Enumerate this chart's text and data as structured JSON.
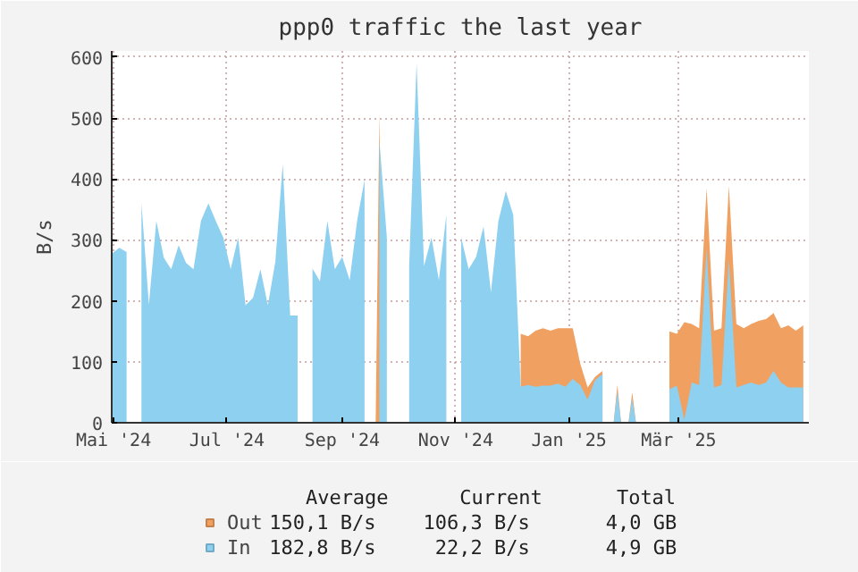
{
  "chart_data": {
    "type": "area",
    "title": "ppp0 traffic the last year",
    "ylabel": "B/s",
    "x": [
      "2024-04-30",
      "2024-05-04",
      "2024-05-08",
      "2024-05-12",
      "2024-05-16",
      "2024-05-20",
      "2024-05-24",
      "2024-05-28",
      "2024-06-01",
      "2024-06-05",
      "2024-06-09",
      "2024-06-13",
      "2024-06-17",
      "2024-06-21",
      "2024-06-25",
      "2024-06-29",
      "2024-07-03",
      "2024-07-07",
      "2024-07-11",
      "2024-07-15",
      "2024-07-19",
      "2024-07-23",
      "2024-07-27",
      "2024-07-31",
      "2024-08-04",
      "2024-08-08",
      "2024-08-12",
      "2024-08-16",
      "2024-08-20",
      "2024-08-24",
      "2024-08-28",
      "2024-09-01",
      "2024-09-05",
      "2024-09-09",
      "2024-09-13",
      "2024-09-17",
      "2024-09-21",
      "2024-09-25",
      "2024-09-29",
      "2024-10-03",
      "2024-10-07",
      "2024-10-11",
      "2024-10-15",
      "2024-10-19",
      "2024-10-23",
      "2024-10-27",
      "2024-10-31",
      "2024-11-04",
      "2024-11-08",
      "2024-11-12",
      "2024-11-16",
      "2024-11-20",
      "2024-11-24",
      "2024-11-28",
      "2024-12-02",
      "2024-12-06",
      "2024-12-10",
      "2024-12-14",
      "2024-12-18",
      "2024-12-22",
      "2024-12-26",
      "2024-12-30",
      "2025-01-03",
      "2025-01-07",
      "2025-01-11",
      "2025-01-15",
      "2025-01-19",
      "2025-01-23",
      "2025-01-27",
      "2025-01-31",
      "2025-02-04",
      "2025-02-08",
      "2025-02-12",
      "2025-02-16",
      "2025-02-20",
      "2025-02-24",
      "2025-02-28",
      "2025-03-04",
      "2025-03-08",
      "2025-03-12",
      "2025-03-16",
      "2025-03-20",
      "2025-03-24",
      "2025-03-28",
      "2025-04-01",
      "2025-04-05",
      "2025-04-09",
      "2025-04-13",
      "2025-04-17",
      "2025-04-21",
      "2025-04-25",
      "2025-04-29",
      "2025-05-03",
      "2025-05-07"
    ],
    "series": [
      {
        "name": "Out",
        "color": "#f0a060",
        "values": [
          null,
          null,
          null,
          null,
          null,
          null,
          null,
          null,
          null,
          null,
          null,
          null,
          null,
          null,
          null,
          null,
          null,
          null,
          null,
          null,
          null,
          null,
          null,
          null,
          null,
          null,
          null,
          null,
          null,
          null,
          null,
          null,
          null,
          null,
          null,
          null,
          507,
          null,
          null,
          null,
          null,
          null,
          null,
          null,
          null,
          null,
          null,
          null,
          null,
          null,
          null,
          null,
          null,
          null,
          null,
          146,
          142,
          151,
          155,
          151,
          155,
          155,
          155,
          97,
          58,
          75,
          85,
          null,
          62,
          null,
          50,
          null,
          null,
          null,
          null,
          150,
          146,
          165,
          162,
          155,
          385,
          151,
          155,
          389,
          162,
          155,
          162,
          167,
          170,
          180,
          155,
          160,
          151,
          160
        ]
      },
      {
        "name": "In",
        "color": "#8ed0ef",
        "values": [
          277,
          287,
          280,
          null,
          360,
          194,
          331,
          271,
          252,
          291,
          262,
          252,
          331,
          360,
          331,
          304,
          252,
          304,
          193,
          205,
          252,
          193,
          264,
          425,
          176,
          176,
          null,
          253,
          232,
          331,
          252,
          272,
          234,
          331,
          399,
          null,
          463,
          304,
          null,
          null,
          257,
          590,
          257,
          304,
          234,
          341,
          null,
          304,
          252,
          272,
          322,
          214,
          331,
          380,
          341,
          59,
          62,
          59,
          61,
          61,
          64,
          59,
          72,
          62,
          38,
          70,
          80,
          null,
          52,
          null,
          40,
          null,
          null,
          null,
          null,
          55,
          61,
          5,
          66,
          62,
          287,
          58,
          62,
          268,
          58,
          62,
          66,
          62,
          66,
          85,
          66,
          58,
          58,
          58
        ]
      }
    ],
    "xlim": [
      "2024-04-30",
      "2025-05-10"
    ],
    "xticks": [
      {
        "value": "2024-05-01",
        "label": "Mai '24"
      },
      {
        "value": "2024-07-01",
        "label": "Jul '24"
      },
      {
        "value": "2024-09-01",
        "label": "Sep '24"
      },
      {
        "value": "2024-11-01",
        "label": "Nov '24"
      },
      {
        "value": "2025-01-01",
        "label": "Jan '25"
      },
      {
        "value": "2025-03-01",
        "label": "Mär '25"
      }
    ],
    "ylim": [
      0,
      610
    ],
    "yticks": [
      0,
      100,
      200,
      300,
      400,
      500,
      600
    ],
    "grid": true,
    "legend": "bottom",
    "annotations": [
      "Average",
      "Current",
      "Total",
      "150,1  B/s",
      "106,3  B/s",
      "4,0 GB",
      "182,8  B/s",
      "22,2  B/s",
      "4,9 GB"
    ]
  }
}
